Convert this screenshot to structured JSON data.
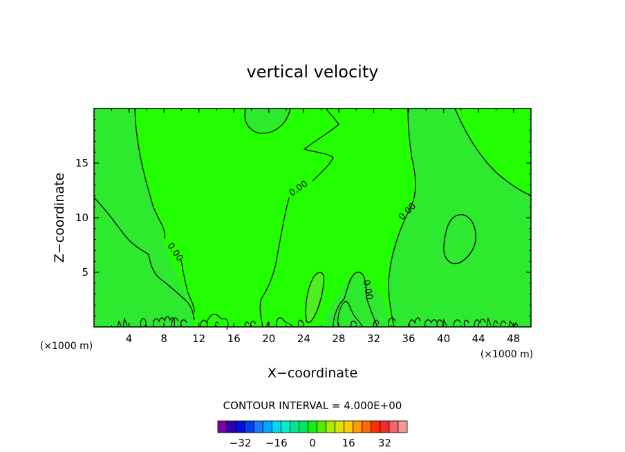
{
  "chart_data": {
    "type": "contour",
    "title": "vertical velocity",
    "xlabel": "X−coordinate",
    "ylabel": "Z−coordinate",
    "x_unit_label": "(×1000 m)",
    "xlim": [
      0,
      50
    ],
    "ylim": [
      0,
      20
    ],
    "x_ticks": [
      4,
      8,
      12,
      16,
      20,
      24,
      28,
      32,
      36,
      40,
      44,
      48
    ],
    "x_tick_labels": [
      "4",
      "8",
      "12",
      "16",
      "20",
      "24",
      "28",
      "32",
      "36",
      "40",
      "44",
      "48"
    ],
    "y_ticks": [
      5,
      10,
      15
    ],
    "y_tick_labels": [
      "5",
      "10",
      "15"
    ],
    "contour_labels": [
      "0.00",
      "0.00",
      "0.00",
      "0.00"
    ],
    "contour_interval_text": "CONTOUR INTERVAL = 4.000E+00",
    "colorbar": {
      "colors": [
        "#7b00a8",
        "#2d00b5",
        "#0010d6",
        "#0040f0",
        "#1a78ff",
        "#00a8ff",
        "#00d8ee",
        "#00eec8",
        "#00e690",
        "#00e85a",
        "#16ee16",
        "#56ee00",
        "#a8ea00",
        "#e2e200",
        "#ffcc00",
        "#ff9a00",
        "#ff6a00",
        "#ff2e00",
        "#f22a2a",
        "#f06464",
        "#f09a9a"
      ],
      "ticks": [
        -32,
        -16,
        0,
        16,
        32
      ],
      "tick_labels": [
        "−32",
        "−16",
        "0",
        "16",
        "32"
      ],
      "range": [
        -42,
        42
      ]
    },
    "fill_colors": {
      "background": "#22ff00",
      "negative_region": "#2eea2e",
      "positive_core": "#50ee20"
    }
  }
}
